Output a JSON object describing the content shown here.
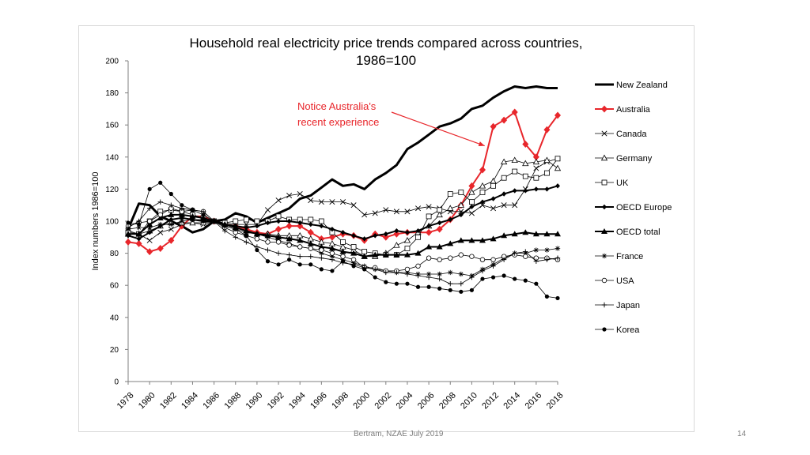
{
  "footer": {
    "source": "Bertram, NZAE July 2019",
    "page_number": "14"
  },
  "chart_data": {
    "type": "line",
    "title_line1": "Household real electricity price trends compared across countries,",
    "title_line2": "1986=100",
    "xlabel": "",
    "ylabel": "Index numbers 1986=100",
    "xlim": [
      1978,
      2018
    ],
    "ylim": [
      0,
      200
    ],
    "yticks": [
      0,
      20,
      40,
      60,
      80,
      100,
      120,
      140,
      160,
      180,
      200
    ],
    "xticks": [
      1978,
      1980,
      1982,
      1984,
      1986,
      1988,
      1990,
      1992,
      1994,
      1996,
      1998,
      2000,
      2002,
      2004,
      2006,
      2008,
      2010,
      2012,
      2014,
      2016,
      2018
    ],
    "grid": false,
    "legend_position": "right",
    "annotation": {
      "line1": "Notice Australia's",
      "line2": "recent experience",
      "color": "#e8262b",
      "arrow_to": [
        2011.2,
        147
      ]
    },
    "series": [
      {
        "name": "New Zealand",
        "style": "thick",
        "marker": "none",
        "color": "#000000",
        "x": [
          1978,
          1979,
          1980,
          1981,
          1982,
          1983,
          1984,
          1985,
          1986,
          1987,
          1988,
          1989,
          1990,
          1991,
          1992,
          1993,
          1994,
          1995,
          1996,
          1997,
          1998,
          1999,
          2000,
          2001,
          2002,
          2003,
          2004,
          2005,
          2006,
          2007,
          2008,
          2009,
          2010,
          2011,
          2012,
          2013,
          2014,
          2015,
          2016,
          2017,
          2018
        ],
        "values": [
          95,
          111,
          110,
          103,
          100,
          97,
          93,
          95,
          100,
          101,
          105,
          103,
          99,
          102,
          105,
          108,
          114,
          116,
          121,
          126,
          122,
          123,
          120,
          126,
          130,
          135,
          145,
          149,
          154,
          159,
          161,
          164,
          170,
          172,
          177,
          181,
          184,
          183,
          184,
          183,
          183
        ]
      },
      {
        "name": "Australia",
        "style": "medium",
        "marker": "diamond",
        "color": "#e8262b",
        "x": [
          1978,
          1979,
          1980,
          1981,
          1982,
          1983,
          1984,
          1985,
          1986,
          1987,
          1988,
          1989,
          1990,
          1991,
          1992,
          1993,
          1994,
          1995,
          1996,
          1997,
          1998,
          1999,
          2000,
          2001,
          2002,
          2003,
          2004,
          2005,
          2006,
          2007,
          2008,
          2009,
          2010,
          2011,
          2012,
          2013,
          2014,
          2015,
          2016,
          2017,
          2018
        ],
        "values": [
          87,
          86,
          81,
          83,
          88,
          97,
          103,
          103,
          100,
          98,
          97,
          95,
          93,
          92,
          95,
          97,
          97,
          93,
          89,
          90,
          92,
          91,
          88,
          92,
          90,
          92,
          93,
          93,
          93,
          95,
          101,
          110,
          122,
          132,
          159,
          163,
          168,
          148,
          140,
          157,
          166
        ]
      },
      {
        "name": "Canada",
        "style": "thin",
        "marker": "x",
        "color": "#000000",
        "x": [
          1978,
          1979,
          1980,
          1981,
          1982,
          1983,
          1984,
          1985,
          1986,
          1987,
          1988,
          1989,
          1990,
          1991,
          1992,
          1993,
          1994,
          1995,
          1996,
          1997,
          1998,
          1999,
          2000,
          2001,
          2002,
          2003,
          2004,
          2005,
          2006,
          2007,
          2008,
          2009,
          2010,
          2011,
          2012,
          2013,
          2014,
          2015,
          2016,
          2017,
          2018
        ],
        "values": [
          94,
          92,
          88,
          93,
          95,
          98,
          99,
          98,
          100,
          99,
          98,
          98,
          98,
          107,
          113,
          116,
          117,
          113,
          112,
          112,
          112,
          110,
          104,
          105,
          107,
          106,
          106,
          108,
          109,
          108,
          106,
          106,
          105,
          110,
          108,
          110,
          110,
          120,
          133,
          137,
          139
        ]
      },
      {
        "name": "Germany",
        "style": "thin",
        "marker": "triangle-open",
        "color": "#000000",
        "x": [
          1978,
          1979,
          1980,
          1981,
          1982,
          1983,
          1984,
          1985,
          1986,
          1987,
          1988,
          1989,
          1990,
          1991,
          1992,
          1993,
          1994,
          1995,
          1996,
          1997,
          1998,
          1999,
          2000,
          2001,
          2002,
          2003,
          2004,
          2005,
          2006,
          2007,
          2008,
          2009,
          2010,
          2011,
          2012,
          2013,
          2014,
          2015,
          2016,
          2017,
          2018
        ],
        "values": [
          92,
          92,
          94,
          97,
          99,
          99,
          99,
          99,
          100,
          98,
          96,
          94,
          92,
          92,
          91,
          91,
          91,
          89,
          87,
          86,
          84,
          82,
          78,
          78,
          80,
          85,
          88,
          93,
          97,
          104,
          108,
          110,
          118,
          122,
          125,
          137,
          138,
          136,
          137,
          138,
          133
        ]
      },
      {
        "name": "UK",
        "style": "thin",
        "marker": "square-open",
        "color": "#000000",
        "x": [
          1978,
          1979,
          1980,
          1981,
          1982,
          1983,
          1984,
          1985,
          1986,
          1987,
          1988,
          1989,
          1990,
          1991,
          1992,
          1993,
          1994,
          1995,
          1996,
          1997,
          1998,
          1999,
          2000,
          2001,
          2002,
          2003,
          2004,
          2005,
          2006,
          2007,
          2008,
          2009,
          2010,
          2011,
          2012,
          2013,
          2014,
          2015,
          2016,
          2017,
          2018
        ],
        "values": [
          93,
          92,
          100,
          106,
          107,
          106,
          104,
          102,
          100,
          99,
          100,
          101,
          100,
          100,
          103,
          101,
          101,
          101,
          100,
          93,
          87,
          84,
          81,
          80,
          79,
          79,
          83,
          90,
          103,
          107,
          117,
          118,
          112,
          118,
          122,
          127,
          131,
          128,
          127,
          130,
          139
        ]
      },
      {
        "name": "OECD Europe",
        "style": "medium",
        "marker": "diamond-small",
        "color": "#000000",
        "x": [
          1978,
          1979,
          1980,
          1981,
          1982,
          1983,
          1984,
          1985,
          1986,
          1987,
          1988,
          1989,
          1990,
          1991,
          1992,
          1993,
          1994,
          1995,
          1996,
          1997,
          1998,
          1999,
          2000,
          2001,
          2002,
          2003,
          2004,
          2005,
          2006,
          2007,
          2008,
          2009,
          2010,
          2011,
          2012,
          2013,
          2014,
          2015,
          2016,
          2017,
          2018
        ],
        "values": [
          91,
          89,
          93,
          97,
          101,
          102,
          101,
          100,
          100,
          98,
          97,
          96,
          97,
          99,
          100,
          100,
          99,
          98,
          97,
          95,
          93,
          91,
          89,
          91,
          92,
          94,
          93,
          94,
          97,
          99,
          101,
          104,
          109,
          112,
          114,
          117,
          119,
          119,
          120,
          120,
          122
        ]
      },
      {
        "name": "OECD total",
        "style": "medium",
        "marker": "triangle-filled",
        "color": "#000000",
        "x": [
          1978,
          1979,
          1980,
          1981,
          1982,
          1983,
          1984,
          1985,
          1986,
          1987,
          1988,
          1989,
          1990,
          1991,
          1992,
          1993,
          1994,
          1995,
          1996,
          1997,
          1998,
          1999,
          2000,
          2001,
          2002,
          2003,
          2004,
          2005,
          2006,
          2007,
          2008,
          2009,
          2010,
          2011,
          2012,
          2013,
          2014,
          2015,
          2016,
          2017,
          2018
        ],
        "values": [
          92,
          92,
          98,
          102,
          104,
          104,
          103,
          102,
          100,
          98,
          96,
          94,
          92,
          91,
          90,
          89,
          88,
          86,
          84,
          83,
          81,
          80,
          78,
          79,
          79,
          79,
          79,
          80,
          84,
          84,
          86,
          88,
          88,
          88,
          89,
          91,
          92,
          93,
          92,
          92,
          92
        ]
      },
      {
        "name": "France",
        "style": "thin",
        "marker": "asterisk",
        "color": "#000000",
        "x": [
          1978,
          1979,
          1980,
          1981,
          1982,
          1983,
          1984,
          1985,
          1986,
          1987,
          1988,
          1989,
          1990,
          1991,
          1992,
          1993,
          1994,
          1995,
          1996,
          1997,
          1998,
          1999,
          2000,
          2001,
          2002,
          2003,
          2004,
          2005,
          2006,
          2007,
          2008,
          2009,
          2010,
          2011,
          2012,
          2013,
          2014,
          2015,
          2016,
          2017,
          2018
        ],
        "values": [
          95,
          96,
          96,
          98,
          98,
          100,
          101,
          101,
          100,
          97,
          95,
          93,
          92,
          90,
          88,
          86,
          84,
          83,
          80,
          78,
          76,
          74,
          72,
          70,
          69,
          68,
          68,
          67,
          67,
          67,
          68,
          67,
          66,
          70,
          73,
          77,
          80,
          80,
          82,
          82,
          83
        ]
      },
      {
        "name": "USA",
        "style": "thin",
        "marker": "circle-open",
        "color": "#000000",
        "x": [
          1978,
          1979,
          1980,
          1981,
          1982,
          1983,
          1984,
          1985,
          1986,
          1987,
          1988,
          1989,
          1990,
          1991,
          1992,
          1993,
          1994,
          1995,
          1996,
          1997,
          1998,
          1999,
          2000,
          2001,
          2002,
          2003,
          2004,
          2005,
          2006,
          2007,
          2008,
          2009,
          2010,
          2011,
          2012,
          2013,
          2014,
          2015,
          2016,
          2017,
          2018
        ],
        "values": [
          97,
          99,
          100,
          104,
          108,
          106,
          107,
          106,
          100,
          96,
          93,
          91,
          89,
          87,
          87,
          85,
          84,
          83,
          82,
          80,
          78,
          76,
          71,
          71,
          69,
          69,
          70,
          72,
          77,
          76,
          77,
          79,
          78,
          76,
          76,
          78,
          79,
          78,
          77,
          77,
          76
        ]
      },
      {
        "name": "Japan",
        "style": "thin",
        "marker": "plus",
        "color": "#000000",
        "x": [
          1978,
          1979,
          1980,
          1981,
          1982,
          1983,
          1984,
          1985,
          1986,
          1987,
          1988,
          1989,
          1990,
          1991,
          1992,
          1993,
          1994,
          1995,
          1996,
          1997,
          1998,
          1999,
          2000,
          2001,
          2002,
          2003,
          2004,
          2005,
          2006,
          2007,
          2008,
          2009,
          2010,
          2011,
          2012,
          2013,
          2014,
          2015,
          2016,
          2017,
          2018
        ],
        "values": [
          96,
          100,
          108,
          112,
          110,
          108,
          107,
          106,
          100,
          94,
          90,
          87,
          84,
          82,
          80,
          79,
          78,
          78,
          77,
          76,
          74,
          73,
          71,
          70,
          68,
          68,
          67,
          66,
          65,
          64,
          61,
          61,
          65,
          69,
          72,
          76,
          80,
          81,
          75,
          76,
          77
        ]
      },
      {
        "name": "Korea",
        "style": "thin",
        "marker": "dot",
        "color": "#000000",
        "x": [
          1978,
          1979,
          1980,
          1981,
          1982,
          1983,
          1984,
          1985,
          1986,
          1987,
          1988,
          1989,
          1990,
          1991,
          1992,
          1993,
          1994,
          1995,
          1996,
          1997,
          1998,
          1999,
          2000,
          2001,
          2002,
          2003,
          2004,
          2005,
          2006,
          2007,
          2008,
          2009,
          2010,
          2011,
          2012,
          2013,
          2014,
          2015,
          2016,
          2017,
          2018
        ],
        "values": [
          99,
          98,
          120,
          124,
          117,
          110,
          107,
          104,
          100,
          97,
          95,
          91,
          82,
          75,
          73,
          76,
          73,
          73,
          70,
          69,
          75,
          72,
          70,
          65,
          62,
          61,
          61,
          59,
          59,
          58,
          57,
          56,
          57,
          64,
          65,
          66,
          64,
          63,
          61,
          53,
          52
        ]
      }
    ]
  }
}
